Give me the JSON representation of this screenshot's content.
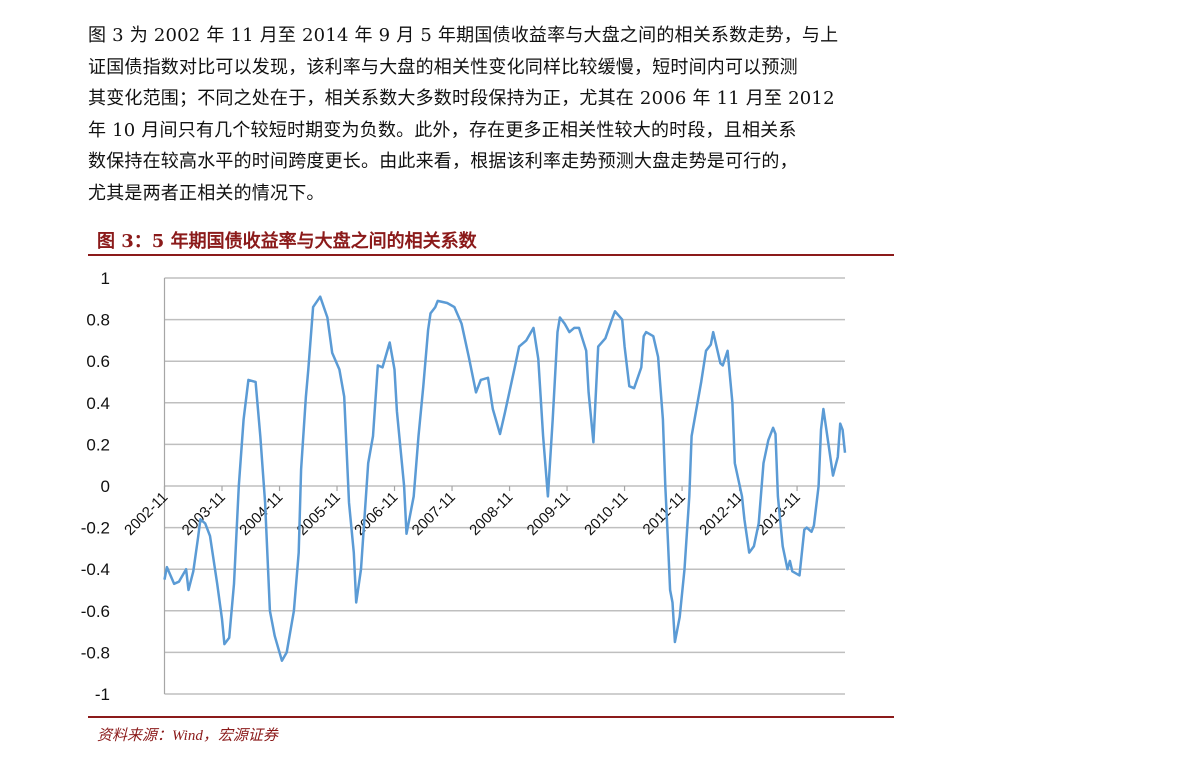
{
  "paragraph": {
    "lines": [
      "图 3 为 2002 年 11 月至 2014 年 9 月 5 年期国债收益率与大盘之间的相关系数走势，与上",
      "证国债指数对比可以发现，该利率与大盘的相关性变化同样比较缓慢，短时间内可以预测",
      "其变化范围；不同之处在于，相关系数大多数时段保持为正，尤其在 2006 年 11 月至 2012",
      "年 10 月间只有几个较短时期变为负数。此外，存在更多正相关性较大的时段，且相关系",
      "数保持在较高水平的时间跨度更长。由此来看，根据该利率走势预测大盘走势是可行的，",
      "尤其是两者正相关的情况下。"
    ]
  },
  "figure": {
    "title": "图 3：5 年期国债收益率与大盘之间的相关系数",
    "source": "资料来源：Wind，宏源证券",
    "accent_color": "#8b1a1a"
  },
  "chart_data": {
    "type": "line",
    "title": "",
    "xlabel": "",
    "ylabel": "",
    "ylim": [
      -1,
      1
    ],
    "xlim": [
      "2002-11-01",
      "2014-09-01"
    ],
    "yticks": [
      "1",
      "0.8",
      "0.6",
      "0.4",
      "0.2",
      "0",
      "-0.2",
      "-0.4",
      "-0.6",
      "-0.8",
      "-1"
    ],
    "xticks": [
      "2002-11",
      "2003-11",
      "2004-11",
      "2005-11",
      "2006-11",
      "2007-11",
      "2008-11",
      "2009-11",
      "2010-11",
      "2011-11",
      "2012-11",
      "2013-11"
    ],
    "grid": "horizontal",
    "line_color": "#5b9bd5",
    "grid_color": "#bfbfbf",
    "series": [
      {
        "points": [
          [
            "2002-11-01",
            -0.45
          ],
          [
            "2002-11-16",
            -0.39
          ],
          [
            "2003-01-01",
            -0.47
          ],
          [
            "2003-02-01",
            -0.46
          ],
          [
            "2003-03-16",
            -0.4
          ],
          [
            "2003-04-01",
            -0.5
          ],
          [
            "2003-05-01",
            -0.41
          ],
          [
            "2003-06-01",
            -0.25
          ],
          [
            "2003-06-16",
            -0.16
          ],
          [
            "2003-07-16",
            -0.18
          ],
          [
            "2003-08-16",
            -0.24
          ],
          [
            "2003-10-01",
            -0.47
          ],
          [
            "2003-11-01",
            -0.64
          ],
          [
            "2003-11-16",
            -0.76
          ],
          [
            "2003-12-16",
            -0.73
          ],
          [
            "2004-01-16",
            -0.47
          ],
          [
            "2004-02-16",
            0.0
          ],
          [
            "2004-03-16",
            0.32
          ],
          [
            "2004-04-16",
            0.51
          ],
          [
            "2004-06-01",
            0.5
          ],
          [
            "2004-07-01",
            0.24
          ],
          [
            "2004-08-01",
            -0.08
          ],
          [
            "2004-09-01",
            -0.6
          ],
          [
            "2004-10-01",
            -0.72
          ],
          [
            "2004-11-16",
            -0.84
          ],
          [
            "2004-12-16",
            -0.8
          ],
          [
            "2005-02-01",
            -0.6
          ],
          [
            "2005-03-01",
            -0.32
          ],
          [
            "2005-03-16",
            0.08
          ],
          [
            "2005-04-16",
            0.43
          ],
          [
            "2005-05-01",
            0.56
          ],
          [
            "2005-06-01",
            0.86
          ],
          [
            "2005-07-16",
            0.91
          ],
          [
            "2005-09-01",
            0.81
          ],
          [
            "2005-10-01",
            0.64
          ],
          [
            "2005-11-16",
            0.56
          ],
          [
            "2005-12-16",
            0.43
          ],
          [
            "2006-01-16",
            -0.08
          ],
          [
            "2006-02-16",
            -0.32
          ],
          [
            "2006-03-01",
            -0.56
          ],
          [
            "2006-04-01",
            -0.4
          ],
          [
            "2006-05-16",
            0.11
          ],
          [
            "2006-06-16",
            0.24
          ],
          [
            "2006-07-16",
            0.58
          ],
          [
            "2006-08-16",
            0.57
          ],
          [
            "2006-10-01",
            0.69
          ],
          [
            "2006-11-01",
            0.56
          ],
          [
            "2006-11-16",
            0.36
          ],
          [
            "2007-01-01",
            0.0
          ],
          [
            "2007-01-16",
            -0.23
          ],
          [
            "2007-03-01",
            -0.05
          ],
          [
            "2007-04-01",
            0.24
          ],
          [
            "2007-05-01",
            0.48
          ],
          [
            "2007-06-01",
            0.75
          ],
          [
            "2007-06-16",
            0.83
          ],
          [
            "2007-07-16",
            0.86
          ],
          [
            "2007-08-01",
            0.89
          ],
          [
            "2007-10-01",
            0.88
          ],
          [
            "2007-11-16",
            0.86
          ],
          [
            "2008-01-01",
            0.78
          ],
          [
            "2008-02-16",
            0.62
          ],
          [
            "2008-04-01",
            0.45
          ],
          [
            "2008-05-01",
            0.51
          ],
          [
            "2008-06-16",
            0.52
          ],
          [
            "2008-07-16",
            0.37
          ],
          [
            "2008-09-01",
            0.25
          ],
          [
            "2008-10-01",
            0.35
          ],
          [
            "2008-12-01",
            0.56
          ],
          [
            "2009-01-01",
            0.67
          ],
          [
            "2009-02-16",
            0.7
          ],
          [
            "2009-04-01",
            0.76
          ],
          [
            "2009-05-01",
            0.61
          ],
          [
            "2009-06-01",
            0.24
          ],
          [
            "2009-07-01",
            -0.05
          ],
          [
            "2009-08-01",
            0.32
          ],
          [
            "2009-09-01",
            0.74
          ],
          [
            "2009-09-16",
            0.81
          ],
          [
            "2009-10-16",
            0.78
          ],
          [
            "2009-11-16",
            0.74
          ],
          [
            "2009-12-16",
            0.76
          ],
          [
            "2010-01-16",
            0.76
          ],
          [
            "2010-03-01",
            0.65
          ],
          [
            "2010-03-16",
            0.45
          ],
          [
            "2010-04-16",
            0.21
          ],
          [
            "2010-05-16",
            0.67
          ],
          [
            "2010-07-01",
            0.71
          ],
          [
            "2010-08-16",
            0.81
          ],
          [
            "2010-09-01",
            0.84
          ],
          [
            "2010-10-16",
            0.8
          ],
          [
            "2010-11-01",
            0.67
          ],
          [
            "2010-12-01",
            0.48
          ],
          [
            "2011-01-01",
            0.47
          ],
          [
            "2011-02-16",
            0.57
          ],
          [
            "2011-03-01",
            0.72
          ],
          [
            "2011-03-16",
            0.74
          ],
          [
            "2011-05-01",
            0.72
          ],
          [
            "2011-06-01",
            0.62
          ],
          [
            "2011-07-01",
            0.32
          ],
          [
            "2011-07-16",
            0.0
          ],
          [
            "2011-08-01",
            -0.24
          ],
          [
            "2011-08-16",
            -0.5
          ],
          [
            "2011-09-01",
            -0.56
          ],
          [
            "2011-09-16",
            -0.75
          ],
          [
            "2011-10-16",
            -0.63
          ],
          [
            "2011-11-16",
            -0.4
          ],
          [
            "2011-12-16",
            -0.05
          ],
          [
            "2012-01-01",
            0.24
          ],
          [
            "2012-02-01",
            0.37
          ],
          [
            "2012-03-01",
            0.5
          ],
          [
            "2012-04-01",
            0.65
          ],
          [
            "2012-05-01",
            0.68
          ],
          [
            "2012-05-16",
            0.74
          ],
          [
            "2012-07-01",
            0.59
          ],
          [
            "2012-07-16",
            0.58
          ],
          [
            "2012-08-16",
            0.65
          ],
          [
            "2012-09-16",
            0.4
          ],
          [
            "2012-10-01",
            0.11
          ],
          [
            "2012-11-16",
            -0.05
          ],
          [
            "2012-12-01",
            -0.16
          ],
          [
            "2013-01-01",
            -0.32
          ],
          [
            "2013-02-01",
            -0.29
          ],
          [
            "2013-03-01",
            -0.18
          ],
          [
            "2013-04-01",
            0.11
          ],
          [
            "2013-05-01",
            0.22
          ],
          [
            "2013-06-01",
            0.28
          ],
          [
            "2013-06-16",
            0.25
          ],
          [
            "2013-07-01",
            -0.05
          ],
          [
            "2013-08-01",
            -0.29
          ],
          [
            "2013-09-01",
            -0.4
          ],
          [
            "2013-09-16",
            -0.36
          ],
          [
            "2013-10-01",
            -0.41
          ],
          [
            "2013-11-16",
            -0.43
          ],
          [
            "2013-12-16",
            -0.21
          ],
          [
            "2014-01-01",
            -0.2
          ],
          [
            "2014-02-01",
            -0.22
          ],
          [
            "2014-02-16",
            -0.19
          ],
          [
            "2014-03-16",
            0.0
          ],
          [
            "2014-04-01",
            0.27
          ],
          [
            "2014-04-16",
            0.37
          ],
          [
            "2014-05-16",
            0.21
          ],
          [
            "2014-06-16",
            0.05
          ],
          [
            "2014-07-16",
            0.14
          ],
          [
            "2014-08-01",
            0.3
          ],
          [
            "2014-08-16",
            0.27
          ],
          [
            "2014-09-01",
            0.16
          ]
        ]
      }
    ]
  }
}
